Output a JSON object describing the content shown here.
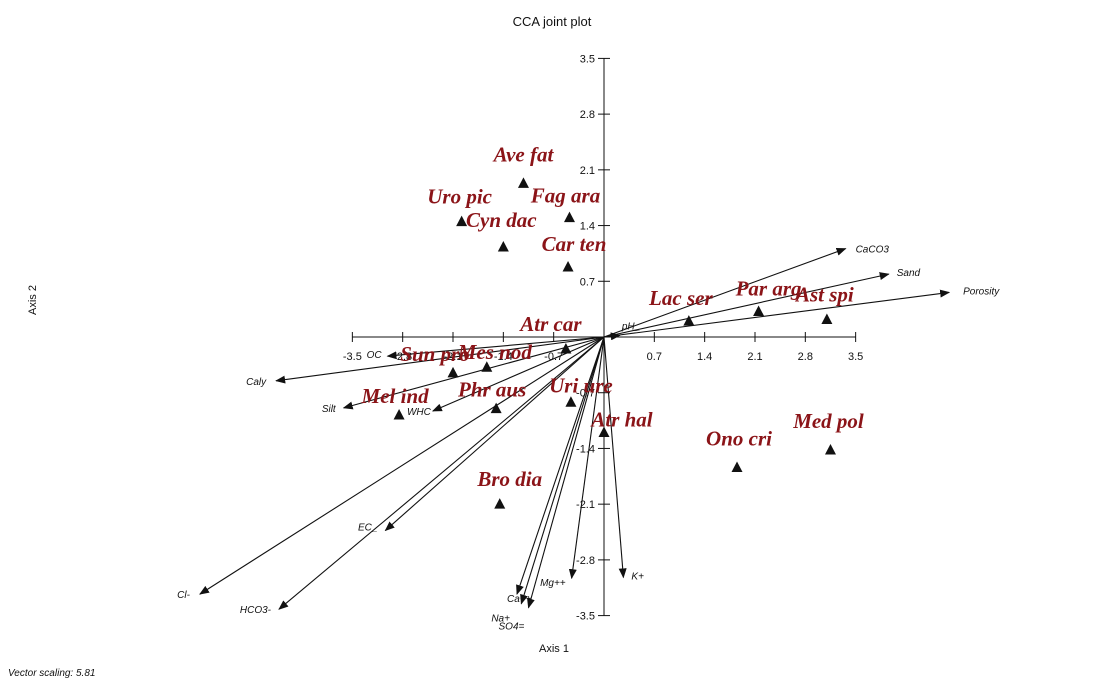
{
  "chart_data": {
    "type": "scatter",
    "title": "CCA joint plot",
    "xlabel": "Axis 1",
    "ylabel": "Axis 2",
    "xlim": [
      -3.5,
      3.5
    ],
    "ylim": [
      -3.5,
      3.5
    ],
    "x_ticks": [
      "-3.5",
      "-2.8",
      "-2.1",
      "-1.4",
      "-0.7",
      "0.7",
      "1.4",
      "2.1",
      "2.8",
      "3.5"
    ],
    "y_ticks": [
      "3.5",
      "2.8",
      "2.1",
      "1.4",
      "0.7",
      "-0.7",
      "-1.4",
      "-2.1",
      "-2.8",
      "-3.5"
    ],
    "footnote": "Vector scaling: 5.81",
    "species": [
      {
        "label": "Ave fat",
        "x": -1.12,
        "y": 1.93
      },
      {
        "label": "Fag ara",
        "x": -0.48,
        "y": 1.5
      },
      {
        "label": "Uro pic",
        "x": -1.98,
        "y": 1.45
      },
      {
        "label": "Cyn dac",
        "x": -1.4,
        "y": 1.13
      },
      {
        "label": "Car ten",
        "x": -0.5,
        "y": 0.88
      },
      {
        "label": "Lac ser",
        "x": 1.18,
        "y": 0.2
      },
      {
        "label": "Par arg",
        "x": 2.15,
        "y": 0.32
      },
      {
        "label": "Ast spi",
        "x": 3.1,
        "y": 0.22
      },
      {
        "label": "Atr car",
        "x": -0.53,
        "y": -0.15
      },
      {
        "label": "Sun pro",
        "x": -2.1,
        "y": -0.45
      },
      {
        "label": "Mes nod",
        "x": -1.63,
        "y": -0.38
      },
      {
        "label": "Mel ind",
        "x": -2.85,
        "y": -0.98
      },
      {
        "label": "Phr aus",
        "x": -1.5,
        "y": -0.9
      },
      {
        "label": "Uri ure",
        "x": -0.46,
        "y": -0.82
      },
      {
        "label": "Atr hal",
        "x": 0.0,
        "y": -1.2
      },
      {
        "label": "Ono cri",
        "x": 1.85,
        "y": -1.64
      },
      {
        "label": "Med pol",
        "x": 3.15,
        "y": -1.42
      },
      {
        "label": "Bro dia",
        "x": -1.45,
        "y": -2.1
      }
    ],
    "vectors": [
      {
        "label": "CaCO3",
        "x": 3.36,
        "y": 1.11
      },
      {
        "label": "Sand",
        "x": 3.96,
        "y": 0.79
      },
      {
        "label": "Porosity",
        "x": 4.8,
        "y": 0.56
      },
      {
        "label": "pH_",
        "x": 0.22,
        "y": 0.02
      },
      {
        "label": "OC",
        "x": -3.01,
        "y": -0.24
      },
      {
        "label": "Caly",
        "x": -4.56,
        "y": -0.55
      },
      {
        "label": "Silt",
        "x": -3.62,
        "y": -0.89
      },
      {
        "label": "WHC",
        "x": -2.38,
        "y": -0.93
      },
      {
        "label": "EC_",
        "x": -3.04,
        "y": -2.43
      },
      {
        "label": "Cl-",
        "x": -5.62,
        "y": -3.23
      },
      {
        "label": "HCO3-",
        "x": -4.52,
        "y": -3.42
      },
      {
        "label": "Ca++",
        "x": -1.21,
        "y": -3.23
      },
      {
        "label": "Na+",
        "x": -1.15,
        "y": -3.35
      },
      {
        "label": "SO4=",
        "x": -1.05,
        "y": -3.4
      },
      {
        "label": "Mg++",
        "x": -0.45,
        "y": -3.03
      },
      {
        "label": "K+",
        "x": 0.27,
        "y": -3.02
      }
    ]
  }
}
